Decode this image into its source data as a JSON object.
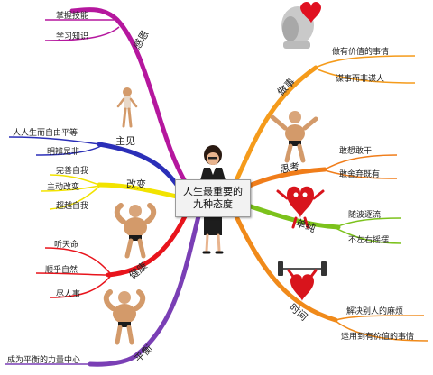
{
  "center": {
    "line1": "人生最重要的",
    "line2": "九种态度"
  },
  "branches": [
    {
      "id": "ganen",
      "label": "感恩",
      "color": "#b5179e",
      "leaves": [
        "掌握技能",
        "学习知识"
      ]
    },
    {
      "id": "zhujian",
      "label": "主见",
      "color": "#2b2fb8",
      "leaves": [
        "人人生而自由平等",
        "明辨是非"
      ]
    },
    {
      "id": "gaibian",
      "label": "改变",
      "color": "#f2e300",
      "leaves": [
        "完善自我",
        "主动改变",
        "超越自我"
      ]
    },
    {
      "id": "jiankang",
      "label": "健康",
      "color": "#e8141c",
      "leaves": [
        "听天命",
        "顺乎自然",
        "尽人事"
      ]
    },
    {
      "id": "pingheng",
      "label": "平衡",
      "color": "#7a3fb5",
      "leaves": [
        "成为平衡的力量中心"
      ]
    },
    {
      "id": "zuoshi",
      "label": "做事",
      "color": "#f59b1b",
      "leaves": [
        "做有价值的事情",
        "谋事而非谋人"
      ]
    },
    {
      "id": "sikao",
      "label": "思考",
      "color": "#f07d1a",
      "leaves": [
        "敢想敢干",
        "敢舍弃既有"
      ]
    },
    {
      "id": "danchun",
      "label": "单纯",
      "color": "#7cc21c",
      "leaves": [
        "随波逐流",
        "不左右摇摆"
      ]
    },
    {
      "id": "shijian",
      "label": "时间",
      "color": "#f08a1a",
      "leaves": [
        "解决别人的麻烦",
        "运用到有价值的事情"
      ]
    }
  ],
  "colors": {
    "background": "#ffffff",
    "center_box": "#f2f2f2",
    "text": "#222222"
  }
}
